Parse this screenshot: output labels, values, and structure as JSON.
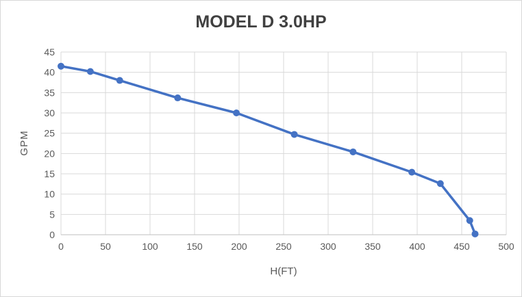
{
  "chart_data": {
    "type": "line",
    "title": "MODEL D 3.0HP",
    "xlabel": "H(FT)",
    "ylabel": "GPM",
    "series": [
      {
        "name": "MODEL D 3.0HP pump curve",
        "x": [
          0,
          33,
          66,
          131,
          197,
          262,
          328,
          394,
          426,
          459,
          465
        ],
        "y": [
          41.5,
          40.2,
          38.0,
          33.7,
          30.0,
          24.7,
          20.4,
          15.4,
          12.6,
          3.5,
          0.2
        ],
        "color": "#4472c4",
        "marker": "circle"
      }
    ],
    "xlim": [
      0,
      500
    ],
    "ylim": [
      0,
      45
    ],
    "xticks": [
      0,
      50,
      100,
      150,
      200,
      250,
      300,
      350,
      400,
      450,
      500
    ],
    "yticks": [
      0,
      5,
      10,
      15,
      20,
      25,
      30,
      35,
      40,
      45
    ],
    "grid": true,
    "legend_position": "none",
    "colors": {
      "series": "#4472c4",
      "gridline": "#d9d9d9",
      "axis_line": "#bfbfbf",
      "tick_text": "#595959",
      "title_text": "#404040",
      "background": "#ffffff"
    }
  }
}
